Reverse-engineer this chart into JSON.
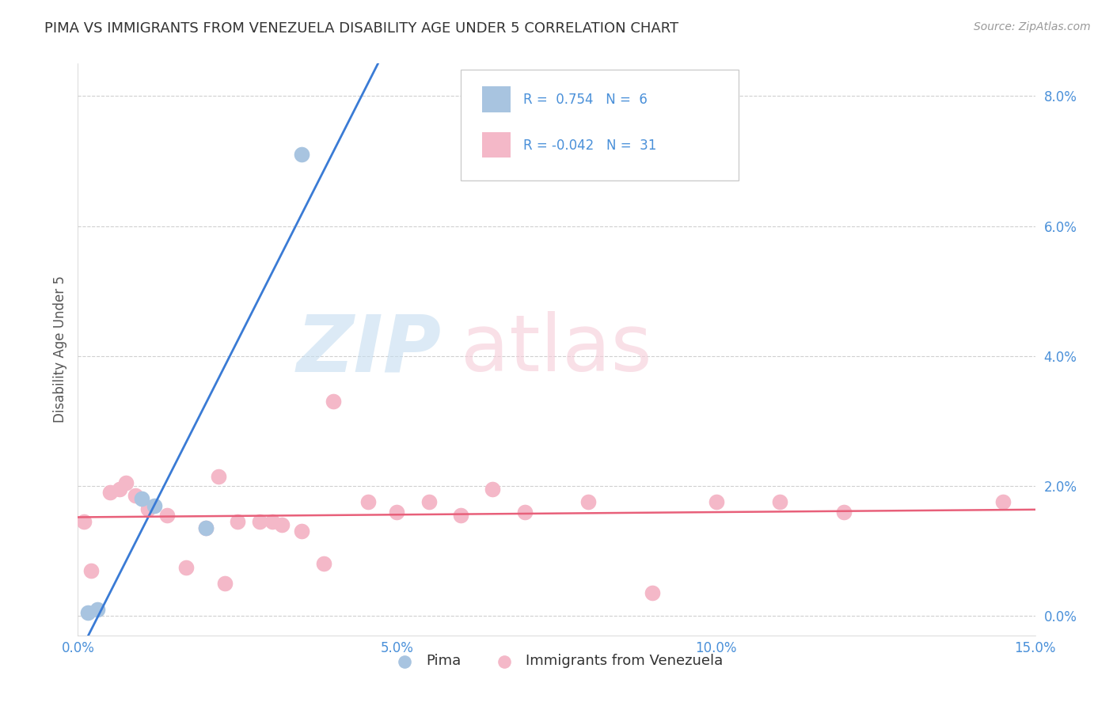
{
  "title": "PIMA VS IMMIGRANTS FROM VENEZUELA DISABILITY AGE UNDER 5 CORRELATION CHART",
  "source": "Source: ZipAtlas.com",
  "ylabel": "Disability Age Under 5",
  "xlabel_vals": [
    0.0,
    5.0,
    10.0,
    15.0
  ],
  "ylabel_vals": [
    0.0,
    2.0,
    4.0,
    6.0,
    8.0
  ],
  "xlim": [
    0.0,
    15.0
  ],
  "ylim": [
    -0.3,
    8.5
  ],
  "pima_color": "#a8c4e0",
  "venezuela_color": "#f4b8c8",
  "pima_line_color": "#3a7bd5",
  "venezuela_line_color": "#e8607a",
  "pima_R": 0.754,
  "pima_N": 6,
  "venezuela_R": -0.042,
  "venezuela_N": 31,
  "pima_points": [
    [
      0.15,
      0.05
    ],
    [
      0.3,
      0.1
    ],
    [
      1.0,
      1.8
    ],
    [
      1.2,
      1.7
    ],
    [
      2.0,
      1.35
    ],
    [
      3.5,
      7.1
    ]
  ],
  "venezuela_points": [
    [
      0.1,
      1.45
    ],
    [
      0.2,
      0.7
    ],
    [
      0.5,
      1.9
    ],
    [
      0.65,
      1.95
    ],
    [
      0.75,
      2.05
    ],
    [
      0.9,
      1.85
    ],
    [
      1.1,
      1.65
    ],
    [
      1.4,
      1.55
    ],
    [
      1.7,
      0.75
    ],
    [
      2.0,
      1.35
    ],
    [
      2.2,
      2.15
    ],
    [
      2.3,
      0.5
    ],
    [
      2.5,
      1.45
    ],
    [
      2.85,
      1.45
    ],
    [
      3.05,
      1.45
    ],
    [
      3.2,
      1.4
    ],
    [
      3.5,
      1.3
    ],
    [
      3.85,
      0.8
    ],
    [
      4.0,
      3.3
    ],
    [
      4.55,
      1.75
    ],
    [
      5.0,
      1.6
    ],
    [
      5.5,
      1.75
    ],
    [
      6.0,
      1.55
    ],
    [
      6.5,
      1.95
    ],
    [
      7.0,
      1.6
    ],
    [
      8.0,
      1.75
    ],
    [
      9.0,
      0.35
    ],
    [
      10.0,
      1.75
    ],
    [
      11.0,
      1.75
    ],
    [
      12.0,
      1.6
    ],
    [
      14.5,
      1.75
    ]
  ],
  "legend_label_pima": "Pima",
  "legend_label_venezuela": "Immigrants from Venezuela",
  "background_color": "#ffffff",
  "grid_color": "#d0d0d0",
  "title_fontsize": 13,
  "tick_fontsize": 12,
  "ylabel_fontsize": 12
}
